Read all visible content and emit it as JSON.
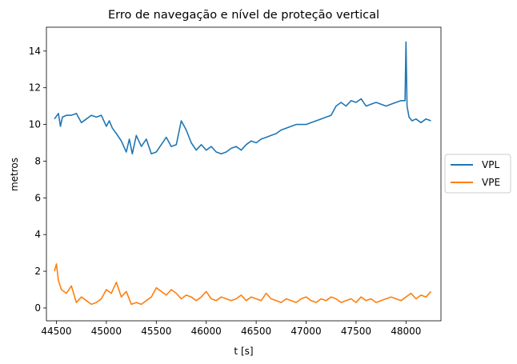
{
  "chart_data": {
    "type": "line",
    "title": "Erro de navegação e nível de proteção vertical",
    "xlabel": "t [s]",
    "ylabel": "metros",
    "xlim": [
      44400,
      48350
    ],
    "ylim": [
      -0.7,
      15.3
    ],
    "xticks": [
      44500,
      45000,
      45500,
      46000,
      46500,
      47000,
      47500,
      48000
    ],
    "yticks": [
      0,
      2,
      4,
      6,
      8,
      10,
      12,
      14
    ],
    "grid": false,
    "legend_position": "right-outside",
    "series": [
      {
        "name": "VPL",
        "color": "#1f77b4",
        "x": [
          44480,
          44520,
          44540,
          44560,
          44600,
          44650,
          44700,
          44750,
          44800,
          44850,
          44900,
          44950,
          45000,
          45030,
          45060,
          45100,
          45150,
          45200,
          45230,
          45260,
          45300,
          45350,
          45400,
          45450,
          45500,
          45550,
          45600,
          45650,
          45700,
          45750,
          45800,
          45850,
          45900,
          45950,
          46000,
          46050,
          46100,
          46150,
          46200,
          46250,
          46300,
          46350,
          46400,
          46450,
          46500,
          46550,
          46600,
          46650,
          46700,
          46750,
          46800,
          46850,
          46900,
          46950,
          47000,
          47050,
          47100,
          47150,
          47200,
          47250,
          47300,
          47350,
          47400,
          47450,
          47500,
          47550,
          47600,
          47650,
          47700,
          47750,
          47800,
          47850,
          47900,
          47950,
          47990,
          48000,
          48010,
          48030,
          48060,
          48100,
          48150,
          48200,
          48250
        ],
        "y": [
          10.3,
          10.6,
          9.9,
          10.4,
          10.5,
          10.5,
          10.6,
          10.1,
          10.3,
          10.5,
          10.4,
          10.5,
          9.9,
          10.2,
          9.8,
          9.5,
          9.1,
          8.5,
          9.2,
          8.4,
          9.4,
          8.8,
          9.2,
          8.4,
          8.5,
          8.9,
          9.3,
          8.8,
          8.9,
          10.2,
          9.7,
          9.0,
          8.6,
          8.9,
          8.6,
          8.8,
          8.5,
          8.4,
          8.5,
          8.7,
          8.8,
          8.6,
          8.9,
          9.1,
          9.0,
          9.2,
          9.3,
          9.4,
          9.5,
          9.7,
          9.8,
          9.9,
          10.0,
          10.0,
          10.0,
          10.1,
          10.2,
          10.3,
          10.4,
          10.5,
          11.0,
          11.2,
          11.0,
          11.3,
          11.2,
          11.4,
          11.0,
          11.1,
          11.2,
          11.1,
          11.0,
          11.1,
          11.2,
          11.3,
          11.3,
          14.5,
          11.0,
          10.4,
          10.2,
          10.3,
          10.1,
          10.3,
          10.2
        ]
      },
      {
        "name": "VPE",
        "color": "#ff7f0e",
        "x": [
          44480,
          44500,
          44520,
          44550,
          44600,
          44650,
          44700,
          44750,
          44800,
          44850,
          44900,
          44950,
          45000,
          45050,
          45100,
          45150,
          45200,
          45250,
          45300,
          45350,
          45400,
          45450,
          45500,
          45550,
          45600,
          45650,
          45700,
          45750,
          45800,
          45850,
          45900,
          45950,
          46000,
          46050,
          46100,
          46150,
          46200,
          46250,
          46300,
          46350,
          46400,
          46450,
          46500,
          46550,
          46600,
          46650,
          46700,
          46750,
          46800,
          46850,
          46900,
          46950,
          47000,
          47050,
          47100,
          47150,
          47200,
          47250,
          47300,
          47350,
          47400,
          47450,
          47500,
          47550,
          47600,
          47650,
          47700,
          47750,
          47800,
          47850,
          47900,
          47950,
          48000,
          48050,
          48100,
          48150,
          48200,
          48250
        ],
        "y": [
          2.0,
          2.4,
          1.5,
          1.0,
          0.8,
          1.2,
          0.3,
          0.6,
          0.4,
          0.2,
          0.3,
          0.5,
          1.0,
          0.8,
          1.4,
          0.6,
          0.9,
          0.2,
          0.3,
          0.2,
          0.4,
          0.6,
          1.1,
          0.9,
          0.7,
          1.0,
          0.8,
          0.5,
          0.7,
          0.6,
          0.4,
          0.6,
          0.9,
          0.5,
          0.4,
          0.6,
          0.5,
          0.4,
          0.5,
          0.7,
          0.4,
          0.6,
          0.5,
          0.4,
          0.8,
          0.5,
          0.4,
          0.3,
          0.5,
          0.4,
          0.3,
          0.5,
          0.6,
          0.4,
          0.3,
          0.5,
          0.4,
          0.6,
          0.5,
          0.3,
          0.4,
          0.5,
          0.3,
          0.6,
          0.4,
          0.5,
          0.3,
          0.4,
          0.5,
          0.6,
          0.5,
          0.4,
          0.6,
          0.8,
          0.5,
          0.7,
          0.6,
          0.9
        ]
      }
    ]
  }
}
